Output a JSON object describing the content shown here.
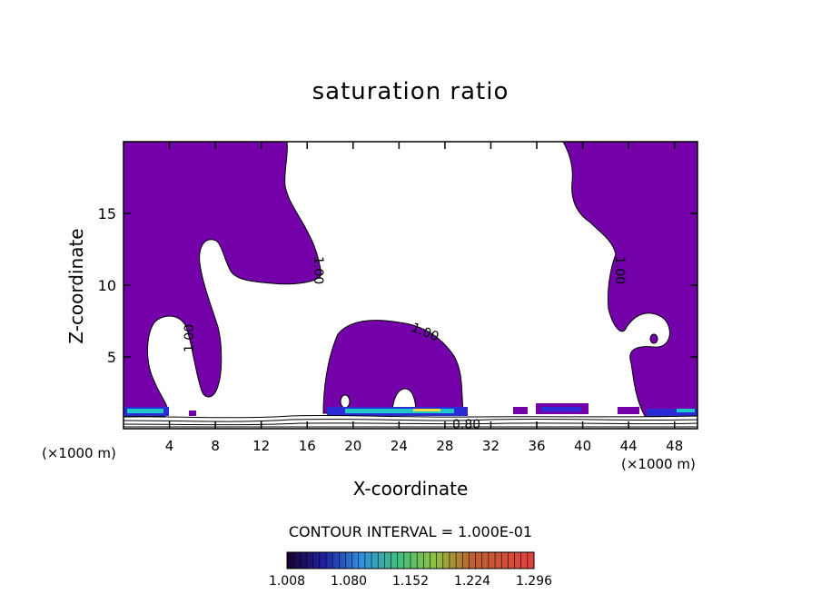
{
  "chart_data": {
    "type": "heatmap",
    "title": "saturation ratio",
    "xlabel": "X-coordinate",
    "ylabel": "Z-coordinate",
    "x_unit_label": "(×1000 m)",
    "x_unit_label_right": "(×1000 m)",
    "xlim": [
      0,
      50
    ],
    "ylim": [
      0,
      20
    ],
    "x_ticks": [
      4,
      8,
      12,
      16,
      20,
      24,
      28,
      32,
      36,
      40,
      44,
      48
    ],
    "y_ticks": [
      5,
      10,
      15
    ],
    "contour_labels": [
      "1.00",
      "1.00",
      "1.00",
      "1.00",
      "0.80"
    ],
    "contour_interval_text": "CONTOUR INTERVAL = 1.000E-01",
    "colorbar": {
      "ticks": [
        "1.008",
        "1.080",
        "1.152",
        "1.224",
        "1.296"
      ],
      "range": [
        1.008,
        1.32
      ]
    },
    "colors": {
      "fill": "#7300a8",
      "low_band": "#2b2bd6",
      "mid_band": "#1ec8c8",
      "high_band": "#f0e040"
    }
  }
}
